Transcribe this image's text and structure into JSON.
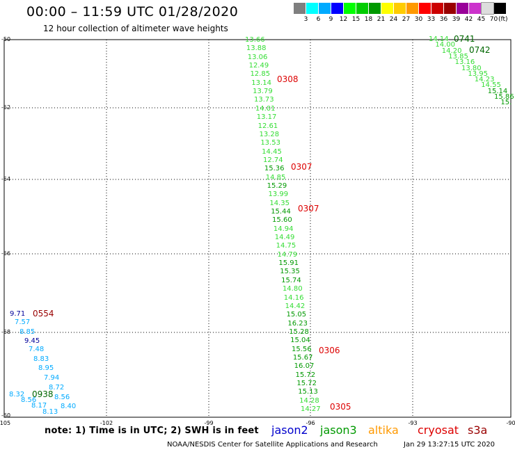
{
  "title": "00:00 – 11:59 UTC 01/28/2020",
  "subtitle": "12 hour collection of altimeter wave heights",
  "color_scale": {
    "colors": [
      "#7f7f7f",
      "#00ffff",
      "#00aaff",
      "#0000ff",
      "#00ff00",
      "#00cc00",
      "#009900",
      "#ffff00",
      "#ffcc00",
      "#ff9900",
      "#ff0000",
      "#cc0000",
      "#990000",
      "#990099",
      "#cc33cc",
      "#dddddd",
      "#000000"
    ],
    "ticks": [
      "3",
      "6",
      "9",
      "12",
      "15",
      "18",
      "21",
      "24",
      "27",
      "30",
      "33",
      "36",
      "39",
      "42",
      "45",
      "70"
    ],
    "unit": "(ft)"
  },
  "latitude_labels": [
    "-50",
    "-52",
    "-54",
    "-56",
    "-58",
    "-60"
  ],
  "longitude_labels": [
    "-105",
    "-102",
    "-99",
    "-96",
    "-93",
    "-90"
  ],
  "observations_track_main": [
    "13.66",
    "13.88",
    "13.06",
    "12.49",
    "12.85",
    "13.14",
    "13.79",
    "13.73",
    "14.01",
    "13.17",
    "12.61",
    "13.28",
    "13.53",
    "14.45",
    "12.74",
    "15.36",
    "14.85",
    "15.29",
    "13.99",
    "14.35",
    "15.44",
    "15.60",
    "14.94",
    "14.49",
    "14.75",
    "14.79",
    "15.91",
    "15.35",
    "15.74",
    "14.80",
    "14.16",
    "14.42",
    "15.05",
    "16.23",
    "15.28",
    "15.04",
    "15.56",
    "15.67",
    "16.07",
    "15.72",
    "15.72",
    "15.13",
    "14.28",
    "14.27"
  ],
  "observations_track_ne": [
    "14.14",
    "14.00",
    "14.20",
    "13.85",
    "13.16",
    "13.80",
    "13.95",
    "14.23",
    "14.55",
    "15.14",
    "15.86",
    "15."
  ],
  "observations_track_sw": [
    "9.71",
    "7.57",
    "8.85",
    "9.45",
    "7.48",
    "8.83",
    "8.95",
    "7.94",
    "8.72",
    "8.32",
    "8.56",
    "8.56",
    "8.17",
    "8.40",
    "8.13"
  ],
  "time_stamps": [
    {
      "label": "0741",
      "color": "#006600"
    },
    {
      "label": "0742",
      "color": "#006600"
    },
    {
      "label": "0308",
      "color": "#dd0000"
    },
    {
      "label": "0307",
      "color": "#dd0000"
    },
    {
      "label": "0307",
      "color": "#dd0000"
    },
    {
      "label": "0554",
      "color": "#990000"
    },
    {
      "label": "0938",
      "color": "#006600"
    },
    {
      "label": "0306",
      "color": "#dd0000"
    },
    {
      "label": "0305",
      "color": "#dd0000"
    }
  ],
  "note": "note:  1) Time is in UTC;  2) SWH is in feet",
  "legend": [
    {
      "label": "jason2",
      "color": "#0000cc"
    },
    {
      "label": "jason3",
      "color": "#009900"
    },
    {
      "label": "altika",
      "color": "#ff9900"
    },
    {
      "label": "cryosat",
      "color": "#dd0000"
    },
    {
      "label": "s3a",
      "color": "#990000"
    }
  ],
  "credit": "NOAA/NESDIS Center for Satellite Applications and Research",
  "generated": "Jan 29 13:27:15 UTC 2020"
}
